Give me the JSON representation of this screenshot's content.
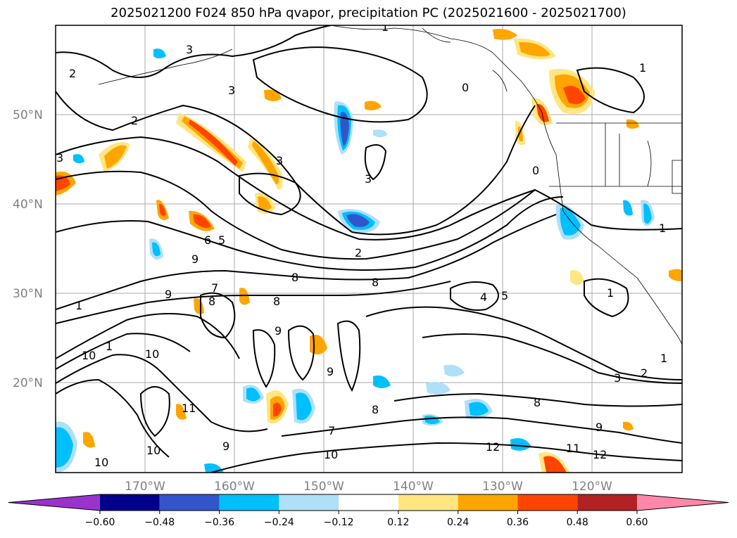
{
  "title": "2025021200 F024 850 hPa qvapor, precipitation PC (2025021600 - 2025021700)",
  "lat_labels": [
    "50°N",
    "40°N",
    "30°N",
    "20°N"
  ],
  "lon_labels": [
    "170°W",
    "160°W",
    "150°W",
    "140°W",
    "130°W",
    "120°W"
  ],
  "colorbar": {
    "ticks": [
      "−0.60",
      "−0.48",
      "−0.36",
      "−0.24",
      "−0.12",
      "0.12",
      "0.24",
      "0.36",
      "0.48",
      "0.60"
    ],
    "colors": [
      "#9933cc",
      "#00008b",
      "#3355cc",
      "#00bfff",
      "#aee0f8",
      "#ffffff",
      "#ffe680",
      "#ffa500",
      "#ff4500",
      "#b22222",
      "#ff88aa"
    ]
  },
  "contour_labels": [
    "1",
    "1",
    "1",
    "1",
    "1",
    "1",
    "1",
    "2",
    "2",
    "2",
    "2",
    "3",
    "3",
    "3",
    "3",
    "3",
    "3",
    "4",
    "5",
    "5",
    "6",
    "7",
    "7",
    "8",
    "8",
    "8",
    "8",
    "8",
    "8",
    "9",
    "9",
    "9",
    "9",
    "9",
    "9",
    "10",
    "10",
    "10",
    "10",
    "10",
    "11",
    "11",
    "12",
    "12",
    "0",
    "0"
  ]
}
